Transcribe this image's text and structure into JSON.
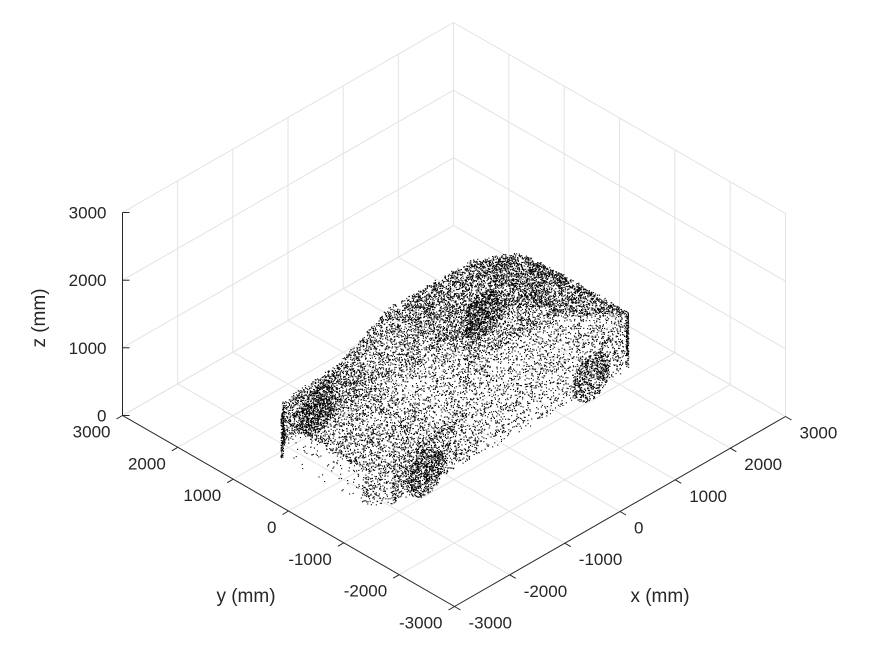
{
  "chart_data": {
    "type": "scatter",
    "subtype": "3d-point-cloud",
    "title": "",
    "xlabel": "x (mm)",
    "ylabel": "y (mm)",
    "zlabel": "z (mm)",
    "xlim": [
      -3000,
      3000
    ],
    "ylim": [
      -3000,
      3000
    ],
    "zlim": [
      0,
      3000
    ],
    "xticks": [
      -3000,
      -2000,
      -1000,
      0,
      1000,
      2000,
      3000
    ],
    "yticks": [
      -3000,
      -2000,
      -1000,
      0,
      1000,
      2000,
      3000
    ],
    "zticks": [
      0,
      1000,
      2000,
      3000
    ],
    "xtick_labels": [
      "-3000",
      "-2000",
      "-1000",
      "0",
      "1000",
      "2000",
      "3000"
    ],
    "ytick_labels": [
      "-3000",
      "-2000",
      "-1000",
      "0",
      "1000",
      "2000",
      "3000"
    ],
    "ztick_labels": [
      "0",
      "1000",
      "2000",
      "3000"
    ],
    "grid": true,
    "view": {
      "azimuth_deg": -45,
      "elevation_deg": 35
    },
    "marker_color": "#000000",
    "grid_color": "#e3e3e3",
    "axis_color": "#262626",
    "point_cloud": {
      "object": "car",
      "x_extent": [
        -2400,
        2400
      ],
      "y_extent": [
        -1000,
        1000
      ],
      "z_extent": [
        0,
        1450
      ],
      "point_color": "#000000"
    }
  }
}
